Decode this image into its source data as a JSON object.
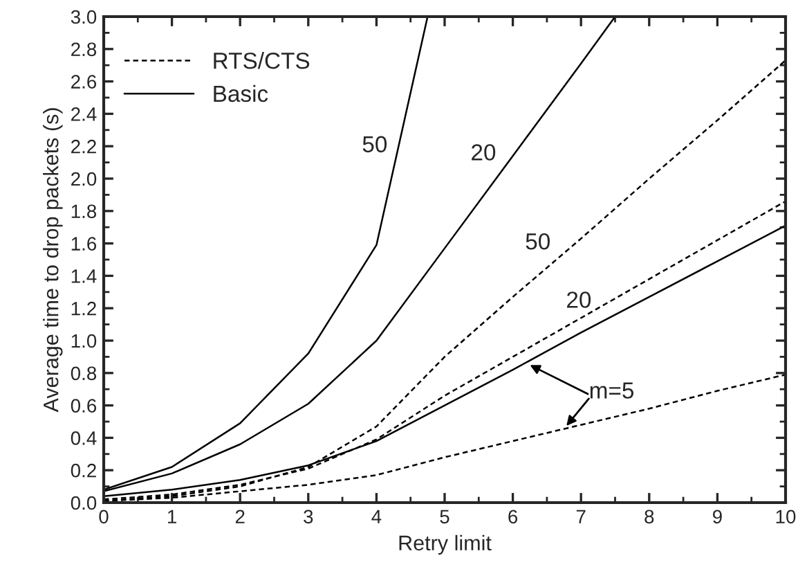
{
  "chart_data": {
    "type": "line",
    "xlabel": "Retry limit",
    "ylabel": "Average time to drop packets (s)",
    "xlim": [
      0,
      10
    ],
    "ylim": [
      0,
      3.0
    ],
    "xticks": [
      0,
      1,
      2,
      3,
      4,
      5,
      6,
      7,
      8,
      9,
      10
    ],
    "yticks": [
      {
        "value": 0,
        "label": "0.0"
      },
      {
        "value": 0.2,
        "label": "0.2"
      },
      {
        "value": 0.4,
        "label": "0.4"
      },
      {
        "value": 0.6,
        "label": "0.6"
      },
      {
        "value": 0.8,
        "label": "0.8"
      },
      {
        "value": 1.0,
        "label": "1.0"
      },
      {
        "value": 1.2,
        "label": "1.2"
      },
      {
        "value": 1.4,
        "label": "1.4"
      },
      {
        "value": 1.6,
        "label": "1.6"
      },
      {
        "value": 1.8,
        "label": "1.8"
      },
      {
        "value": 2.0,
        "label": "2.0"
      },
      {
        "value": 2.2,
        "label": "2.2"
      },
      {
        "value": 2.4,
        "label": "2.4"
      },
      {
        "value": 2.6,
        "label": "2.6"
      },
      {
        "value": 2.8,
        "label": "2.8"
      },
      {
        "value": 3.0,
        "label": "3.0"
      }
    ],
    "grid": false,
    "legend": "top left",
    "marker": "none",
    "series": [
      {
        "name": "RTS/CTS",
        "color": "#000000",
        "line_style": "dashed",
        "x": [
          0,
          1,
          2,
          3,
          4,
          5,
          6,
          7,
          8,
          9,
          10
        ],
        "values": [
          0.01,
          0.03,
          0.07,
          0.11,
          0.17,
          0.28,
          0.38,
          0.48,
          0.58,
          0.69,
          0.79
        ]
      },
      {
        "name": "Basic",
        "color": "#000000",
        "line_style": "solid",
        "x": [
          0,
          1,
          2,
          3,
          4,
          5,
          6,
          7,
          8,
          9,
          10
        ],
        "values": [
          0.04,
          0.08,
          0.14,
          0.23,
          0.38,
          0.6,
          0.82,
          1.05,
          1.27,
          1.49,
          1.71
        ]
      },
      {
        "color": "#000000",
        "line_style": "dashed",
        "x": [
          0,
          1,
          2,
          3,
          4,
          5,
          6,
          7,
          8,
          9,
          10
        ],
        "values": [
          0.02,
          0.05,
          0.11,
          0.21,
          0.39,
          0.66,
          0.9,
          1.14,
          1.38,
          1.62,
          1.86
        ]
      },
      {
        "color": "#000000",
        "line_style": "dashed",
        "x": [
          0,
          1,
          2,
          3,
          4,
          5,
          6,
          7,
          8,
          9,
          10
        ],
        "values": [
          0.01,
          0.04,
          0.1,
          0.22,
          0.47,
          0.9,
          1.27,
          1.63,
          2.0,
          2.36,
          2.73
        ]
      },
      {
        "color": "#000000",
        "line_style": "solid",
        "x": [
          0,
          1,
          2,
          3,
          4,
          5,
          6,
          7,
          7.5
        ],
        "values": [
          0.07,
          0.18,
          0.36,
          0.61,
          1.0,
          1.57,
          2.14,
          2.71,
          3.0
        ]
      },
      {
        "color": "#000000",
        "line_style": "solid",
        "x": [
          0,
          1,
          2,
          3,
          4,
          4.75
        ],
        "values": [
          0.08,
          0.22,
          0.49,
          0.92,
          1.59,
          3.0
        ]
      }
    ],
    "annotations": [
      "50",
      "20",
      "50",
      "20",
      {
        "text": "m=5",
        "x": 6.2,
        "y": 0.86
      }
    ]
  }
}
